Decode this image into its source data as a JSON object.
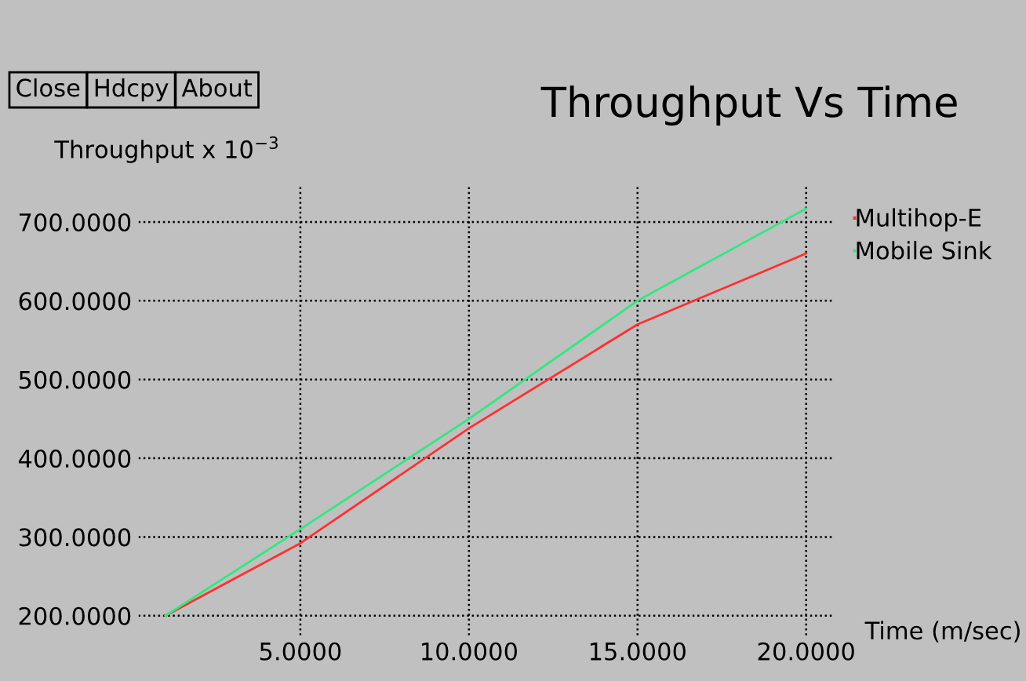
{
  "chart_data": {
    "type": "line",
    "title": "Throughput Vs Time",
    "xlabel": "Time (m/sec)",
    "ylabel": "Throughput x 10$^{−3}$",
    "x": [
      1,
      5,
      10,
      15,
      20
    ],
    "series": [
      {
        "name": "Multihop-E",
        "color": "#ff3030",
        "values": [
          200,
          292,
          438,
          570,
          660
        ]
      },
      {
        "name": "Mobile Sink",
        "color": "#30e880",
        "values": [
          200,
          310,
          450,
          600,
          717
        ]
      }
    ],
    "xlim": [
      0.2,
      20.8
    ],
    "ylim": [
      175,
      745
    ],
    "xticks": [
      {
        "value": 5,
        "label": "5.0000"
      },
      {
        "value": 10,
        "label": "10.0000"
      },
      {
        "value": 15,
        "label": "15.0000"
      },
      {
        "value": 20,
        "label": "20.0000"
      }
    ],
    "yticks": [
      {
        "value": 200,
        "label": "200.0000"
      },
      {
        "value": 300,
        "label": "300.0000"
      },
      {
        "value": 400,
        "label": "400.0000"
      },
      {
        "value": 500,
        "label": "500.0000"
      },
      {
        "value": 600,
        "label": "600.0000"
      },
      {
        "value": 700,
        "label": "700.0000"
      }
    ],
    "grid": true,
    "legend": "top right",
    "line_style": "solid",
    "marker": "none",
    "annotations": [
      "Close",
      "Hdcpy",
      "About"
    ]
  }
}
